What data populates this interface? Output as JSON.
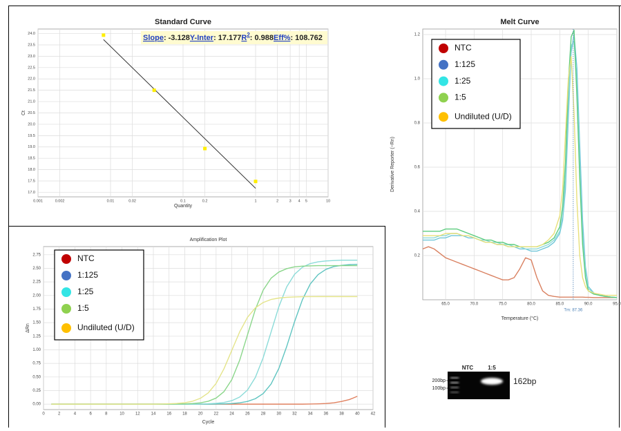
{
  "chart_data": [
    {
      "type": "scatter",
      "title": "Standard Curve",
      "xlabel": "Quantity",
      "ylabel": "Ct",
      "xscale": "log",
      "x": [
        0.008,
        0.04,
        0.2,
        1
      ],
      "values": [
        23.93,
        21.5,
        18.93,
        17.48
      ],
      "color": "#ffee00",
      "line_color": "#333333",
      "xlim": [
        0.001,
        10
      ],
      "xticks": [
        0.001,
        0.002,
        0.01,
        0.02,
        0.1,
        0.2,
        1,
        2,
        3,
        4,
        5,
        10
      ],
      "ylim": [
        16.8,
        24.2
      ],
      "yticks": [
        {
          "value": 17,
          "label": "17.0"
        },
        17.5,
        {
          "value": 18,
          "label": "18.0"
        },
        18.5,
        {
          "value": 19,
          "label": "19.0"
        },
        19.5,
        {
          "value": 20,
          "label": "20.0"
        },
        20.5,
        {
          "value": 21,
          "label": "21.0"
        },
        21.5,
        {
          "value": 22,
          "label": "22.0"
        },
        22.5,
        {
          "value": 23,
          "label": "23.0"
        },
        23.5,
        {
          "value": 24,
          "label": "24.0"
        }
      ],
      "grid": true,
      "fit": {
        "separator": ":",
        "items": [
          {
            "label": "Slope",
            "value": -3.128
          },
          {
            "label": "Y-Inter",
            "value": 17.177
          },
          {
            "label": "R",
            "superscript": "2",
            "value": 0.988
          },
          {
            "label": "Eff%",
            "value": 108.762
          }
        ]
      }
    },
    {
      "type": "line",
      "title": "Amplification Plot",
      "xlabel": "Cycle",
      "ylabel": "ΔRn",
      "x": [
        1,
        2,
        3,
        4,
        5,
        6,
        7,
        8,
        9,
        10,
        11,
        12,
        13,
        14,
        15,
        16,
        17,
        18,
        19,
        20,
        21,
        22,
        23,
        24,
        25,
        26,
        27,
        28,
        29,
        30,
        31,
        32,
        33,
        34,
        35,
        36,
        37,
        38,
        39,
        40
      ],
      "series": [
        {
          "name": "NTC",
          "color": "#e0805f",
          "legend_color": "#c00000",
          "values": [
            0,
            0,
            0,
            0,
            0,
            0,
            0,
            0,
            0,
            0,
            0,
            0,
            0,
            0,
            0,
            0,
            0,
            0,
            0,
            0,
            0,
            0,
            0,
            0,
            0,
            0,
            0,
            0,
            0,
            0,
            0,
            0,
            0,
            0.003,
            0.006,
            0.012,
            0.025,
            0.05,
            0.085,
            0.145
          ]
        },
        {
          "name": "1:125",
          "color": "#5ec4c0",
          "legend_color": "#4472c4",
          "values": [
            0,
            0,
            0,
            0,
            0,
            0,
            0,
            0,
            0,
            0,
            0,
            0,
            0,
            0,
            0,
            0,
            0,
            0,
            0,
            0,
            0,
            0.003,
            0.006,
            0.012,
            0.025,
            0.05,
            0.1,
            0.195,
            0.37,
            0.658,
            1.062,
            1.518,
            1.922,
            2.211,
            2.384,
            2.481,
            2.532,
            2.555,
            2.568,
            2.574
          ]
        },
        {
          "name": "1:25",
          "color": "#8adbd8",
          "legend_color": "#33e5e5",
          "values": [
            0,
            0,
            0,
            0,
            0,
            0,
            0,
            0,
            0,
            0,
            0,
            0,
            0,
            0,
            0,
            0,
            0,
            0,
            0,
            0.003,
            0.007,
            0.015,
            0.031,
            0.064,
            0.13,
            0.259,
            0.491,
            0.855,
            1.325,
            1.795,
            2.159,
            2.39,
            2.52,
            2.587,
            2.62,
            2.636,
            2.644,
            2.65,
            2.65,
            2.65
          ]
        },
        {
          "name": "1:5",
          "color": "#8ad68a",
          "legend_color": "#8fd14f",
          "values": [
            0,
            0,
            0,
            0,
            0,
            0,
            0,
            0,
            0,
            0,
            0,
            0,
            0,
            0,
            0,
            0,
            0.003,
            0.005,
            0.012,
            0.025,
            0.053,
            0.112,
            0.23,
            0.451,
            0.807,
            1.275,
            1.743,
            2.099,
            2.317,
            2.432,
            2.494,
            2.527,
            2.54,
            2.545,
            2.55,
            2.55,
            2.55,
            2.55,
            2.55,
            2.55
          ]
        },
        {
          "name": "Undiluted (U/D)",
          "color": "#e4e48a",
          "legend_color": "#ffc000",
          "values": [
            0,
            0,
            0,
            0,
            0,
            0,
            0,
            0,
            0,
            0,
            0,
            0,
            0,
            0,
            0.003,
            0.007,
            0.013,
            0.027,
            0.054,
            0.108,
            0.208,
            0.382,
            0.651,
            0.99,
            1.329,
            1.598,
            1.772,
            1.871,
            1.926,
            1.953,
            1.966,
            1.973,
            1.977,
            1.979,
            1.98,
            1.98,
            1.98,
            1.98,
            1.98,
            1.98
          ]
        }
      ],
      "xlim": [
        0,
        42
      ],
      "xticks": [
        0,
        2,
        4,
        6,
        8,
        10,
        12,
        14,
        16,
        18,
        20,
        22,
        24,
        26,
        28,
        30,
        32,
        34,
        36,
        38,
        40,
        42
      ],
      "ylim": [
        -0.1,
        2.9
      ],
      "yticks": [
        {
          "value": 0,
          "label": "0.00"
        },
        0.25,
        {
          "value": 0.5,
          "label": "0.50"
        },
        0.75,
        {
          "value": 1,
          "label": "1.00"
        },
        1.25,
        {
          "value": 1.5,
          "label": "1.50"
        },
        1.75,
        {
          "value": 2,
          "label": "2.00"
        },
        2.25,
        {
          "value": 2.5,
          "label": "2.50"
        },
        2.75
      ],
      "grid": true,
      "legend": "top-left"
    },
    {
      "type": "line",
      "title": "Melt Curve",
      "xlabel": "Temperature (°C)",
      "ylabel": "Derivative Reporter (−Rn)",
      "x": [
        61,
        62,
        63,
        64,
        65,
        66,
        67,
        68,
        69,
        70,
        71,
        72,
        73,
        74,
        75,
        76,
        77,
        78,
        79,
        80,
        81,
        82,
        83,
        84,
        85,
        85.5,
        86,
        86.5,
        87,
        87.5,
        88,
        88.5,
        89,
        89.5,
        90,
        91,
        92,
        93,
        94,
        95
      ],
      "series": [
        {
          "name": "NTC",
          "color": "#d98060",
          "legend_color": "#c00000",
          "values": [
            0.23,
            0.24,
            0.23,
            0.21,
            0.19,
            0.18,
            0.17,
            0.16,
            0.15,
            0.14,
            0.13,
            0.12,
            0.11,
            0.1,
            0.09,
            0.09,
            0.1,
            0.14,
            0.19,
            0.18,
            0.1,
            0.04,
            0.02,
            0.015,
            0.012,
            0.012,
            0.012,
            0.012,
            0.012,
            0.012,
            0.012,
            0.012,
            0.012,
            0.011,
            0.011,
            0.01,
            0.01,
            0.01,
            0.01,
            0.01
          ]
        },
        {
          "name": "1:125",
          "color": "#6fc6d8",
          "legend_color": "#4472c4",
          "values": [
            0.27,
            0.27,
            0.27,
            0.28,
            0.28,
            0.29,
            0.29,
            0.29,
            0.28,
            0.28,
            0.27,
            0.26,
            0.26,
            0.25,
            0.25,
            0.24,
            0.24,
            0.23,
            0.23,
            0.22,
            0.22,
            0.23,
            0.24,
            0.26,
            0.3,
            0.36,
            0.5,
            0.82,
            1.12,
            1.2,
            1.05,
            0.7,
            0.36,
            0.15,
            0.06,
            0.03,
            0.02,
            0.015,
            0.012,
            0.01
          ]
        },
        {
          "name": "1:25",
          "color": "#8cd8d8",
          "legend_color": "#33e5e5",
          "values": [
            0.28,
            0.28,
            0.28,
            0.29,
            0.29,
            0.3,
            0.3,
            0.29,
            0.29,
            0.28,
            0.27,
            0.27,
            0.26,
            0.26,
            0.25,
            0.25,
            0.24,
            0.24,
            0.23,
            0.23,
            0.23,
            0.24,
            0.25,
            0.27,
            0.31,
            0.38,
            0.55,
            0.88,
            1.15,
            1.17,
            0.98,
            0.62,
            0.3,
            0.13,
            0.05,
            0.03,
            0.02,
            0.015,
            0.012,
            0.01
          ]
        },
        {
          "name": "1:5",
          "color": "#5ccc7e",
          "legend_color": "#8fd14f",
          "values": [
            0.31,
            0.31,
            0.31,
            0.31,
            0.32,
            0.32,
            0.32,
            0.31,
            0.3,
            0.29,
            0.28,
            0.27,
            0.27,
            0.26,
            0.26,
            0.25,
            0.25,
            0.24,
            0.24,
            0.24,
            0.24,
            0.25,
            0.26,
            0.28,
            0.33,
            0.42,
            0.62,
            0.98,
            1.19,
            1.22,
            0.92,
            0.55,
            0.25,
            0.1,
            0.04,
            0.025,
            0.02,
            0.015,
            0.012,
            0.01
          ]
        },
        {
          "name": "Undiluted (U/D)",
          "color": "#e8e07a",
          "legend_color": "#ffc000",
          "values": [
            0.29,
            0.29,
            0.29,
            0.29,
            0.3,
            0.3,
            0.3,
            0.29,
            0.29,
            0.28,
            0.27,
            0.26,
            0.26,
            0.25,
            0.25,
            0.24,
            0.24,
            0.24,
            0.24,
            0.24,
            0.24,
            0.25,
            0.27,
            0.3,
            0.38,
            0.5,
            0.75,
            1.0,
            1.1,
            0.85,
            0.45,
            0.2,
            0.1,
            0.06,
            0.04,
            0.03,
            0.025,
            0.02,
            0.02,
            0.02
          ]
        }
      ],
      "xlim": [
        61,
        95
      ],
      "xticks": [
        {
          "value": 65,
          "label": "65.0"
        },
        {
          "value": 70,
          "label": "70.0"
        },
        {
          "value": 75,
          "label": "75.0"
        },
        {
          "value": 80,
          "label": "80.0"
        },
        {
          "value": 85,
          "label": "85.0"
        },
        {
          "value": 90,
          "label": "90.0"
        },
        {
          "value": 95,
          "label": "95.0"
        }
      ],
      "ylim": [
        0,
        1.225
      ],
      "yticks": [
        0.2,
        0.4,
        0.6,
        0.8,
        {
          "value": 1,
          "label": "1.0"
        },
        1.2
      ],
      "grid": true,
      "legend": "top-left",
      "tm": {
        "value": 87.36,
        "label": "Tm: 87.36"
      }
    }
  ],
  "gel": {
    "lanes": [
      "NTC",
      "1:5"
    ],
    "ladder": [
      "200bp",
      "100bp"
    ],
    "band_label": "162bp"
  }
}
